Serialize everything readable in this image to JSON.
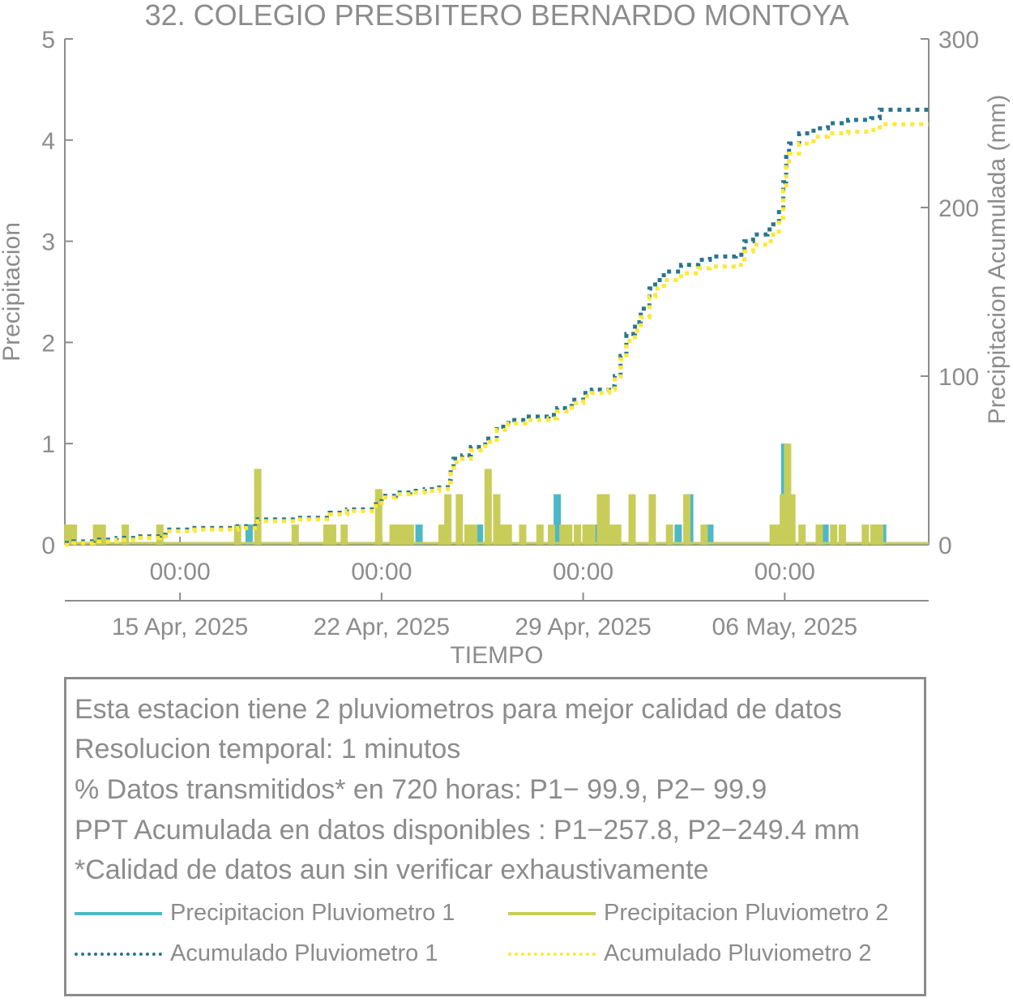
{
  "chart_data": {
    "type": "bar",
    "title": "32. COLEGIO PRESBITERO BERNARDO MONTOYA",
    "xlabel": "TIEMPO",
    "ylabel": "Precipitacion",
    "y2label": "Precipitacion Acumulada (mm)",
    "ylim": [
      0,
      5
    ],
    "y2lim": [
      0,
      300
    ],
    "yticks": [
      "0",
      "1",
      "2",
      "3",
      "4",
      "5"
    ],
    "y2ticks": [
      "0",
      "100",
      "200",
      "300"
    ],
    "xlim": [
      0,
      30
    ],
    "xticks_time": [
      {
        "pos": 4.0,
        "label": "00:00"
      },
      {
        "pos": 11.0,
        "label": "00:00"
      },
      {
        "pos": 18.0,
        "label": "00:00"
      },
      {
        "pos": 25.0,
        "label": "00:00"
      }
    ],
    "xticks_date": [
      {
        "pos": 4.0,
        "label": "15 Apr, 2025"
      },
      {
        "pos": 11.0,
        "label": "22 Apr, 2025"
      },
      {
        "pos": 18.0,
        "label": "29 Apr, 2025"
      },
      {
        "pos": 25.0,
        "label": "06 May, 2025"
      }
    ],
    "colors": {
      "p1": "#4cb8c8",
      "p2": "#c8cd5a",
      "a1": "#2a7590",
      "a2": "#ffe835",
      "axis": "#8c8c8c"
    },
    "series": [
      {
        "name": "Precipitacion Pluviometro 1",
        "kind": "bar",
        "axis": "left",
        "points": [
          [
            6.4,
            0.2
          ],
          [
            12.3,
            0.2
          ],
          [
            14.4,
            0.2
          ],
          [
            17.1,
            0.5
          ],
          [
            18.5,
            0.2
          ],
          [
            21.7,
            0.5
          ],
          [
            21.3,
            0.2
          ],
          [
            22.4,
            0.2
          ],
          [
            25.0,
            1.0
          ],
          [
            28.4,
            0.2
          ],
          [
            26.4,
            0.2
          ]
        ]
      },
      {
        "name": "Precipitacion Pluviometro 2",
        "kind": "bar",
        "axis": "left",
        "points": [
          [
            0.1,
            0.2
          ],
          [
            0.3,
            0.2
          ],
          [
            1.1,
            0.2
          ],
          [
            1.3,
            0.2
          ],
          [
            2.1,
            0.2
          ],
          [
            3.3,
            0.2
          ],
          [
            6.0,
            0.2
          ],
          [
            6.7,
            0.75
          ],
          [
            8.0,
            0.2
          ],
          [
            9.1,
            0.2
          ],
          [
            9.3,
            0.2
          ],
          [
            9.7,
            0.2
          ],
          [
            10.9,
            0.55
          ],
          [
            11.4,
            0.2
          ],
          [
            11.6,
            0.2
          ],
          [
            11.8,
            0.2
          ],
          [
            12.0,
            0.2
          ],
          [
            13.1,
            0.2
          ],
          [
            13.3,
            0.5
          ],
          [
            13.7,
            0.5
          ],
          [
            14.0,
            0.2
          ],
          [
            14.2,
            0.2
          ],
          [
            14.7,
            0.75
          ],
          [
            15.0,
            0.5
          ],
          [
            15.2,
            0.2
          ],
          [
            15.4,
            0.2
          ],
          [
            15.9,
            0.2
          ],
          [
            16.5,
            0.2
          ],
          [
            16.9,
            0.2
          ],
          [
            17.3,
            0.2
          ],
          [
            17.5,
            0.2
          ],
          [
            17.8,
            0.2
          ],
          [
            18.1,
            0.2
          ],
          [
            18.3,
            0.2
          ],
          [
            18.6,
            0.5
          ],
          [
            18.8,
            0.5
          ],
          [
            19.0,
            0.2
          ],
          [
            19.2,
            0.2
          ],
          [
            19.7,
            0.5
          ],
          [
            20.4,
            0.5
          ],
          [
            21.0,
            0.2
          ],
          [
            21.6,
            0.5
          ],
          [
            22.2,
            0.2
          ],
          [
            24.6,
            0.2
          ],
          [
            24.8,
            0.2
          ],
          [
            24.95,
            0.5
          ],
          [
            25.1,
            1.0
          ],
          [
            25.25,
            0.5
          ],
          [
            25.6,
            0.2
          ],
          [
            26.2,
            0.2
          ],
          [
            26.7,
            0.2
          ],
          [
            27.0,
            0.2
          ],
          [
            27.8,
            0.2
          ],
          [
            28.1,
            0.2
          ],
          [
            28.3,
            0.2
          ]
        ]
      },
      {
        "name": "Acumulado Pluviometro 1",
        "kind": "line",
        "axis": "right",
        "points": [
          [
            0,
            1
          ],
          [
            0.3,
            2
          ],
          [
            1.0,
            3
          ],
          [
            1.8,
            4
          ],
          [
            2.5,
            5
          ],
          [
            3.3,
            6
          ],
          [
            3.5,
            9
          ],
          [
            4.5,
            10
          ],
          [
            6.0,
            11
          ],
          [
            6.7,
            15
          ],
          [
            8.0,
            16
          ],
          [
            9.2,
            19
          ],
          [
            9.8,
            21
          ],
          [
            10.8,
            24
          ],
          [
            11.0,
            29
          ],
          [
            11.5,
            31
          ],
          [
            12.0,
            32
          ],
          [
            12.5,
            33
          ],
          [
            13.0,
            34
          ],
          [
            13.3,
            38
          ],
          [
            13.4,
            46
          ],
          [
            13.5,
            51
          ],
          [
            13.8,
            53
          ],
          [
            14.1,
            58
          ],
          [
            14.6,
            63
          ],
          [
            15.0,
            70
          ],
          [
            15.4,
            74
          ],
          [
            16.0,
            76
          ],
          [
            16.8,
            77
          ],
          [
            17.1,
            81
          ],
          [
            17.6,
            86
          ],
          [
            18.0,
            90
          ],
          [
            18.3,
            92
          ],
          [
            18.9,
            94
          ],
          [
            19.1,
            100
          ],
          [
            19.3,
            112
          ],
          [
            19.5,
            125
          ],
          [
            19.8,
            132
          ],
          [
            20.0,
            140
          ],
          [
            20.3,
            152
          ],
          [
            20.5,
            157
          ],
          [
            20.8,
            162
          ],
          [
            21.4,
            166
          ],
          [
            22.0,
            169
          ],
          [
            22.4,
            171
          ],
          [
            23.3,
            172
          ],
          [
            23.6,
            180
          ],
          [
            23.9,
            184
          ],
          [
            24.4,
            187
          ],
          [
            24.6,
            190
          ],
          [
            24.8,
            200
          ],
          [
            24.95,
            215
          ],
          [
            25.05,
            230
          ],
          [
            25.15,
            238
          ],
          [
            25.5,
            244
          ],
          [
            26.0,
            247
          ],
          [
            26.5,
            250
          ],
          [
            27.2,
            252
          ],
          [
            28.0,
            253
          ],
          [
            28.3,
            258
          ],
          [
            30,
            258
          ]
        ]
      },
      {
        "name": "Acumulado Pluviometro 2",
        "kind": "line",
        "axis": "right",
        "points": [
          [
            0,
            0
          ],
          [
            0.3,
            1
          ],
          [
            1.0,
            2
          ],
          [
            1.8,
            3
          ],
          [
            2.5,
            4
          ],
          [
            3.3,
            5
          ],
          [
            3.5,
            8
          ],
          [
            4.5,
            9
          ],
          [
            6.0,
            10
          ],
          [
            6.7,
            14
          ],
          [
            8.0,
            15
          ],
          [
            9.2,
            18
          ],
          [
            9.8,
            20
          ],
          [
            10.8,
            23
          ],
          [
            11.0,
            28
          ],
          [
            11.5,
            30
          ],
          [
            12.0,
            31
          ],
          [
            12.5,
            32
          ],
          [
            13.0,
            33
          ],
          [
            13.3,
            37
          ],
          [
            13.4,
            44
          ],
          [
            13.5,
            49
          ],
          [
            13.8,
            51
          ],
          [
            14.1,
            56
          ],
          [
            14.6,
            61
          ],
          [
            15.0,
            68
          ],
          [
            15.4,
            72
          ],
          [
            16.0,
            74
          ],
          [
            16.8,
            75
          ],
          [
            17.1,
            79
          ],
          [
            17.6,
            84
          ],
          [
            18.0,
            88
          ],
          [
            18.3,
            90
          ],
          [
            18.9,
            92
          ],
          [
            19.1,
            98
          ],
          [
            19.3,
            110
          ],
          [
            19.5,
            121
          ],
          [
            19.8,
            127
          ],
          [
            20.0,
            135
          ],
          [
            20.3,
            147
          ],
          [
            20.5,
            152
          ],
          [
            20.8,
            157
          ],
          [
            21.4,
            161
          ],
          [
            22.0,
            164
          ],
          [
            22.4,
            165
          ],
          [
            23.3,
            166
          ],
          [
            23.6,
            174
          ],
          [
            23.9,
            178
          ],
          [
            24.4,
            180
          ],
          [
            24.6,
            184
          ],
          [
            24.8,
            194
          ],
          [
            24.95,
            210
          ],
          [
            25.05,
            224
          ],
          [
            25.15,
            232
          ],
          [
            25.5,
            238
          ],
          [
            26.0,
            242
          ],
          [
            26.5,
            244
          ],
          [
            27.2,
            245
          ],
          [
            28.0,
            246
          ],
          [
            28.3,
            249.4
          ],
          [
            30,
            249.4
          ]
        ]
      }
    ],
    "legend_placement": "bottom"
  },
  "info": {
    "line1": "Esta estacion tiene 2 pluviometros para mejor calidad de datos",
    "line2": "Resolucion temporal: 1 minutos",
    "line3": "% Datos transmitidos* en 720 horas: P1− 99.9, P2− 99.9",
    "line4": "PPT Acumulada en datos disponibles : P1−257.8, P2−249.4 mm",
    "line5": "*Calidad de datos aun sin verificar exhaustivamente"
  },
  "legend": {
    "p1": "Precipitacion Pluviometro 1",
    "p2": "Precipitacion Pluviometro 2",
    "a1": "Acumulado Pluviometro 1",
    "a2": "Acumulado Pluviometro 2"
  }
}
